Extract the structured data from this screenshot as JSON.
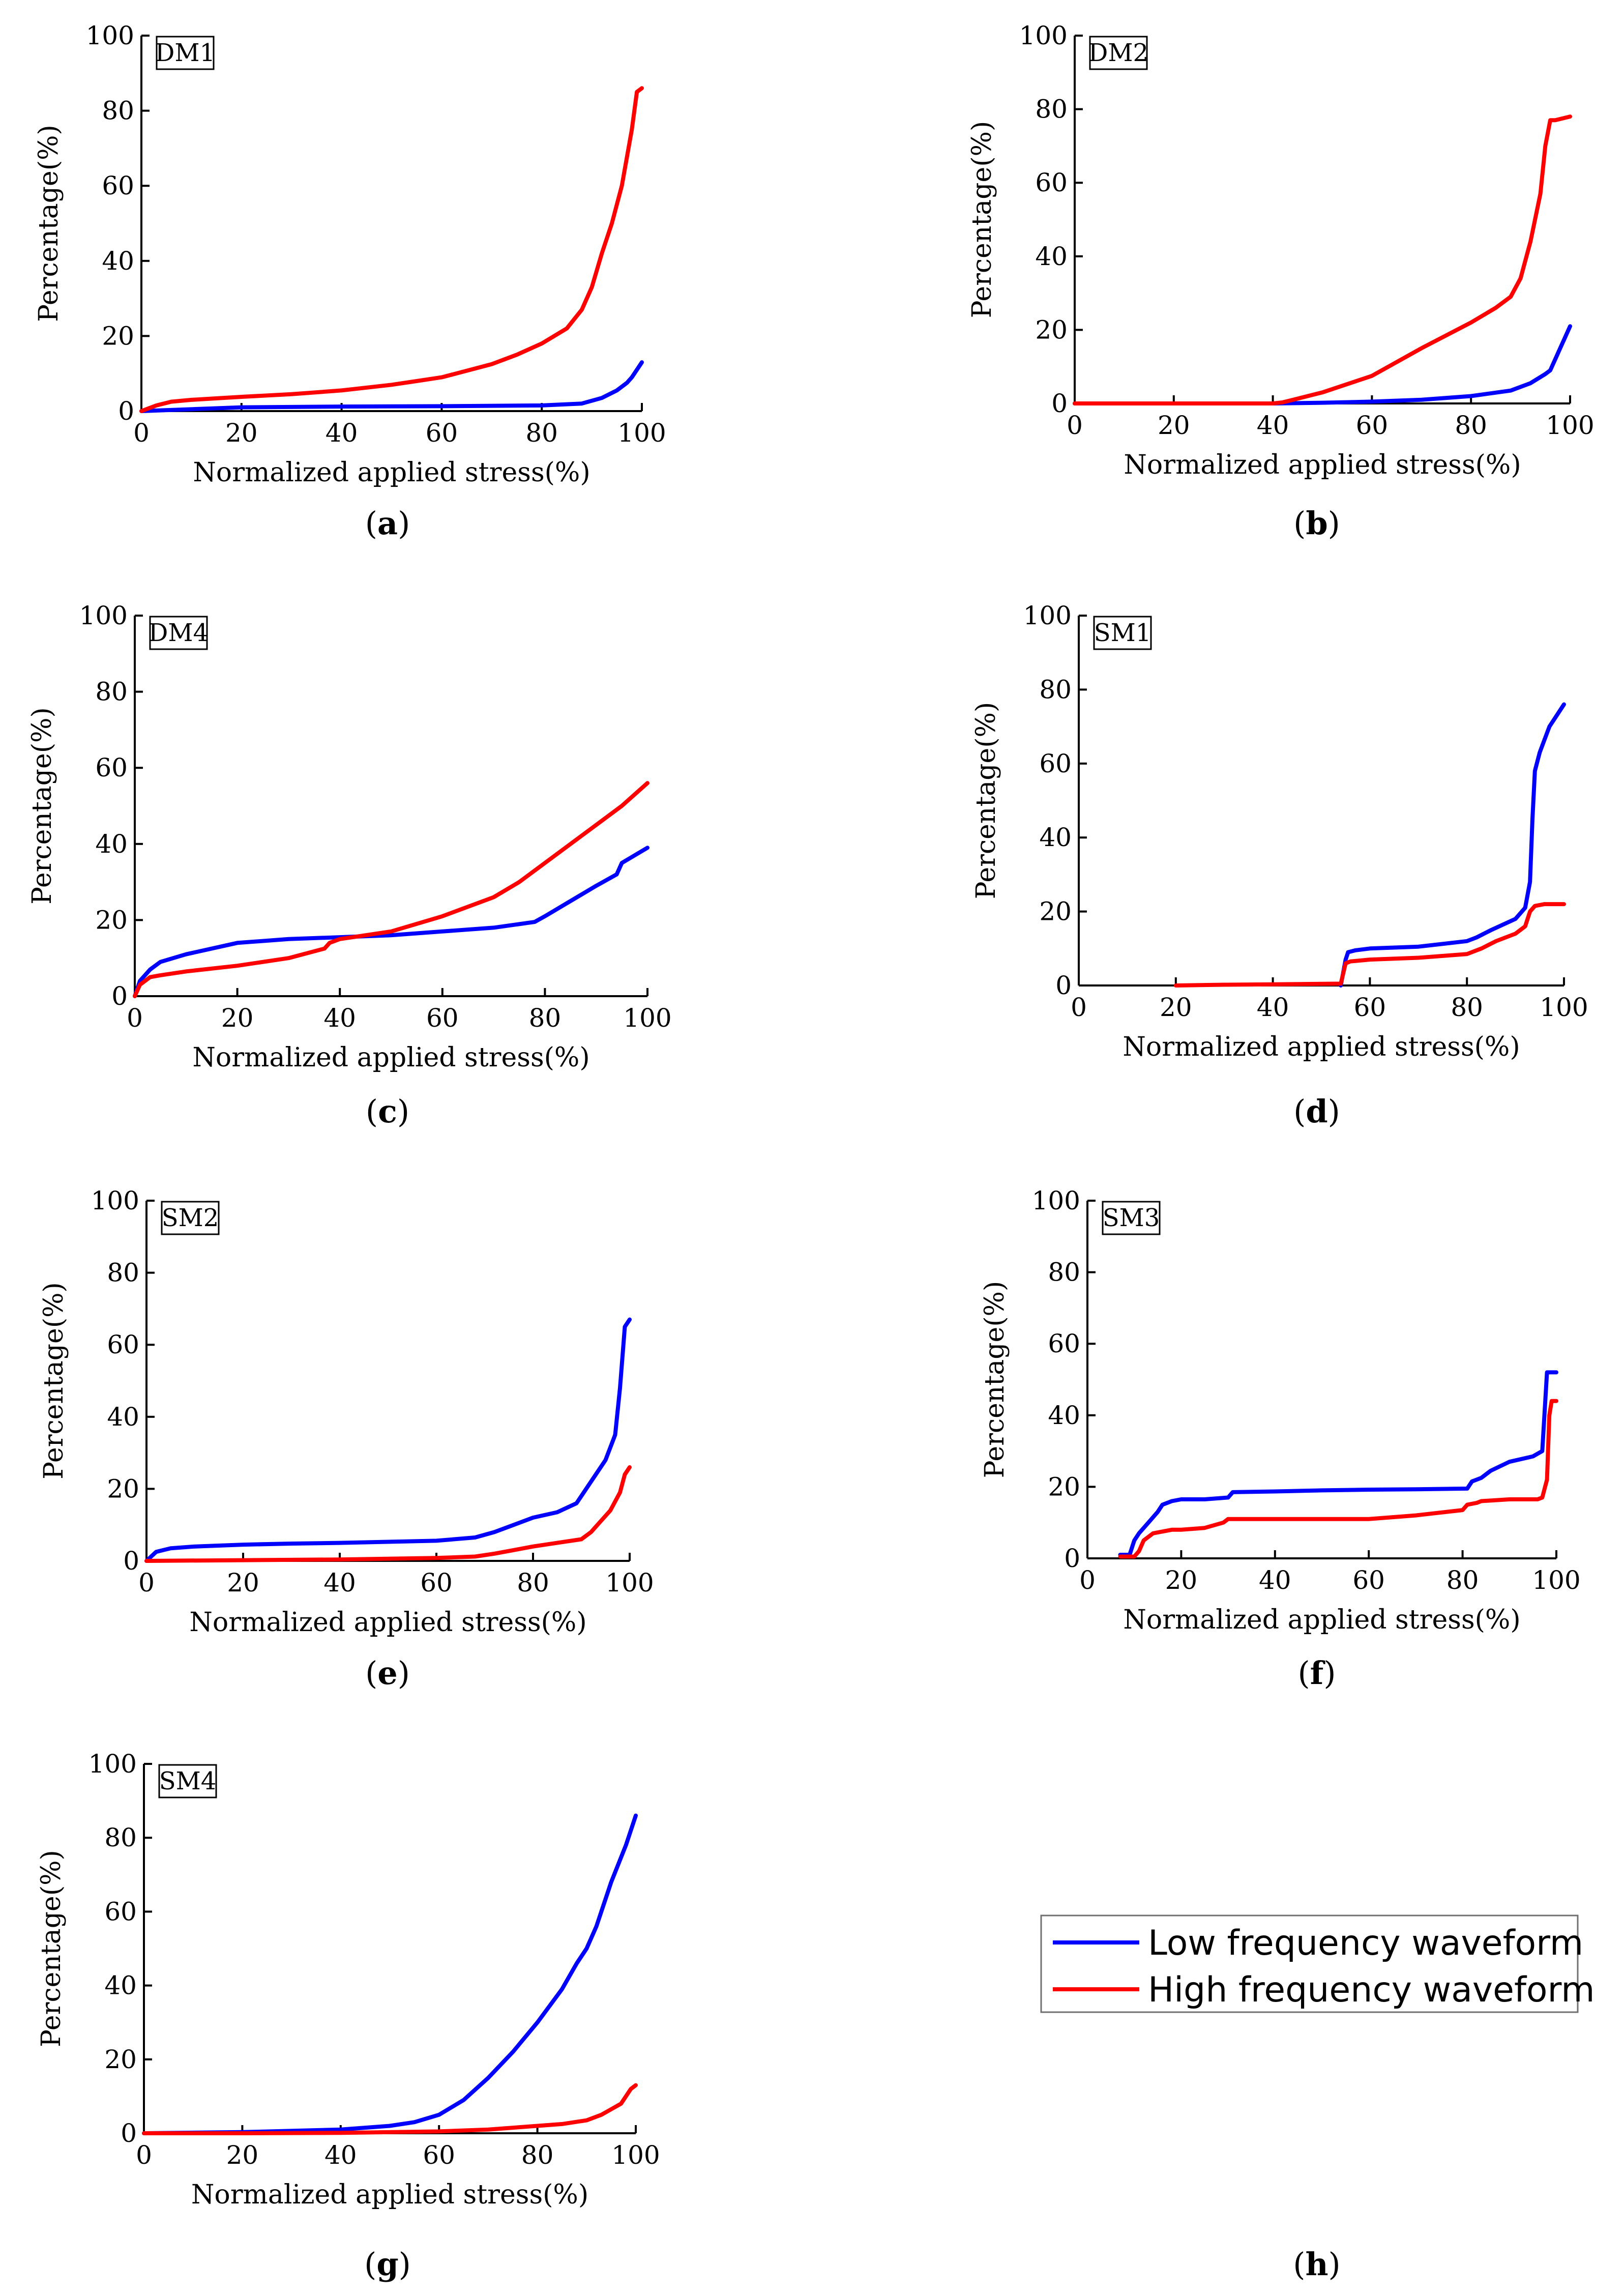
{
  "figure": {
    "legend": {
      "entries": [
        {
          "label": "Low frequency waveform",
          "color": "#0000ff"
        },
        {
          "label": "High frequency waveform",
          "color": "#ff0000"
        }
      ]
    },
    "empty_panel_caption": {
      "open": "(",
      "letter": "h",
      "close": ")"
    }
  },
  "chart_data": [
    {
      "type": "line",
      "panel": "a",
      "sample_label": "DM1",
      "caption": {
        "open": "(",
        "letter": "a",
        "close": ")"
      },
      "xlabel": "Normalized applied stress(%)",
      "ylabel": "Percentage(%)",
      "xlim": [
        0,
        100
      ],
      "ylim": [
        0,
        100
      ],
      "xticks": [
        0,
        20,
        40,
        60,
        80,
        100
      ],
      "yticks": [
        0,
        20,
        40,
        60,
        80,
        100
      ],
      "series": [
        {
          "name": "Low frequency waveform",
          "color": "#0000ff",
          "x": [
            0,
            20,
            40,
            60,
            80,
            88,
            92,
            95,
            97,
            98,
            99,
            100
          ],
          "y": [
            0,
            1,
            1.2,
            1.3,
            1.5,
            2,
            3.5,
            5.5,
            7.5,
            9,
            11,
            13
          ]
        },
        {
          "name": "High frequency waveform",
          "color": "#ff0000",
          "x": [
            0,
            3,
            6,
            10,
            20,
            30,
            40,
            50,
            55,
            60,
            70,
            75,
            80,
            85,
            88,
            90,
            92,
            94,
            96,
            98,
            99,
            100
          ],
          "y": [
            0,
            1.5,
            2.5,
            3,
            3.8,
            4.5,
            5.5,
            7,
            8,
            9,
            12.5,
            15,
            18,
            22,
            27,
            33,
            42,
            50,
            60,
            75,
            85,
            86
          ]
        }
      ]
    },
    {
      "type": "line",
      "panel": "b",
      "sample_label": "DM2",
      "caption": {
        "open": "(",
        "letter": "b",
        "close": ")"
      },
      "xlabel": "Normalized applied stress(%)",
      "ylabel": "Percentage(%)",
      "xlim": [
        0,
        100
      ],
      "ylim": [
        0,
        100
      ],
      "xticks": [
        0,
        20,
        40,
        60,
        80,
        100
      ],
      "yticks": [
        0,
        20,
        40,
        60,
        80,
        100
      ],
      "series": [
        {
          "name": "Low frequency waveform",
          "color": "#0000ff",
          "x": [
            0,
            40,
            50,
            60,
            70,
            80,
            88,
            92,
            95,
            96,
            97,
            98,
            99,
            100
          ],
          "y": [
            0,
            0,
            0.2,
            0.5,
            1,
            2,
            3.5,
            5.5,
            8,
            9,
            12,
            15,
            18,
            21
          ]
        },
        {
          "name": "High frequency waveform",
          "color": "#ff0000",
          "x": [
            0,
            40,
            42,
            50,
            60,
            70,
            80,
            85,
            88,
            90,
            92,
            94,
            95,
            96,
            97,
            100
          ],
          "y": [
            0,
            0,
            0.3,
            3,
            7.5,
            15,
            22,
            26,
            29,
            34,
            44,
            57,
            70,
            77,
            77,
            78
          ]
        }
      ]
    },
    {
      "type": "line",
      "panel": "c",
      "sample_label": "DM4",
      "caption": {
        "open": "(",
        "letter": "c",
        "close": ")"
      },
      "xlabel": "Normalized applied stress(%)",
      "ylabel": "Percentage(%)",
      "xlim": [
        0,
        100
      ],
      "ylim": [
        0,
        100
      ],
      "xticks": [
        0,
        20,
        40,
        60,
        80,
        100
      ],
      "yticks": [
        0,
        20,
        40,
        60,
        80,
        100
      ],
      "series": [
        {
          "name": "Low frequency waveform",
          "color": "#0000ff",
          "x": [
            0,
            1,
            3,
            5,
            10,
            20,
            30,
            40,
            50,
            60,
            70,
            78,
            80,
            85,
            90,
            94,
            95,
            100
          ],
          "y": [
            0,
            4,
            7,
            9,
            11,
            14,
            15,
            15.5,
            16,
            17,
            18,
            19.5,
            21,
            25,
            29,
            32,
            35,
            39
          ]
        },
        {
          "name": "High frequency waveform",
          "color": "#ff0000",
          "x": [
            0,
            1,
            3,
            5,
            10,
            20,
            30,
            37,
            38,
            40,
            50,
            60,
            70,
            75,
            80,
            85,
            90,
            95,
            100
          ],
          "y": [
            0,
            3,
            5,
            5.5,
            6.5,
            8,
            10,
            12.5,
            14,
            15,
            17,
            21,
            26,
            30,
            35,
            40,
            45,
            50,
            56
          ]
        }
      ]
    },
    {
      "type": "line",
      "panel": "d",
      "sample_label": "SM1",
      "caption": {
        "open": "(",
        "letter": "d",
        "close": ")"
      },
      "xlabel": "Normalized applied stress(%)",
      "ylabel": "Percentage(%)",
      "xlim": [
        0,
        100
      ],
      "ylim": [
        0,
        100
      ],
      "xticks": [
        0,
        20,
        40,
        60,
        80,
        100
      ],
      "yticks": [
        0,
        20,
        40,
        60,
        80,
        100
      ],
      "series": [
        {
          "name": "Low frequency waveform",
          "color": "#0000ff",
          "x": [
            54,
            55,
            55.5,
            57,
            60,
            70,
            80,
            82,
            85,
            90,
            92,
            93,
            93.5,
            94,
            95,
            97,
            99,
            100
          ],
          "y": [
            0,
            7,
            9,
            9.5,
            10,
            10.5,
            12,
            13,
            15,
            18,
            21,
            28,
            45,
            58,
            63,
            70,
            74,
            76
          ]
        },
        {
          "name": "High frequency waveform",
          "color": "#ff0000",
          "x": [
            20,
            30,
            40,
            54,
            55,
            56,
            60,
            70,
            80,
            83,
            86,
            90,
            92,
            93,
            94,
            96,
            100
          ],
          "y": [
            0,
            0.2,
            0.3,
            0.5,
            6,
            6.5,
            7,
            7.5,
            8.5,
            10,
            12,
            14,
            16,
            20,
            21.5,
            22,
            22
          ]
        }
      ]
    },
    {
      "type": "line",
      "panel": "e",
      "sample_label": "SM2",
      "caption": {
        "open": "(",
        "letter": "e",
        "close": ")"
      },
      "xlabel": "Normalized applied stress(%)",
      "ylabel": "Percentage(%)",
      "xlim": [
        0,
        100
      ],
      "ylim": [
        0,
        100
      ],
      "xticks": [
        0,
        20,
        40,
        60,
        80,
        100
      ],
      "yticks": [
        0,
        20,
        40,
        60,
        80,
        100
      ],
      "series": [
        {
          "name": "Low frequency waveform",
          "color": "#0000ff",
          "x": [
            0,
            2,
            5,
            10,
            20,
            30,
            40,
            50,
            60,
            68,
            72,
            76,
            80,
            85,
            89,
            91,
            93,
            95,
            97,
            98,
            99,
            100
          ],
          "y": [
            0,
            2.5,
            3.5,
            4,
            4.5,
            4.8,
            5,
            5.3,
            5.6,
            6.5,
            8,
            10,
            12,
            13.5,
            16,
            20,
            24,
            28,
            35,
            48,
            65,
            67
          ]
        },
        {
          "name": "High frequency waveform",
          "color": "#ff0000",
          "x": [
            0,
            20,
            40,
            60,
            68,
            72,
            76,
            80,
            85,
            90,
            92,
            94,
            96,
            98,
            99,
            100
          ],
          "y": [
            0,
            0.2,
            0.4,
            0.8,
            1.2,
            2,
            3,
            4,
            5,
            6,
            8,
            11,
            14,
            19,
            24,
            26
          ]
        }
      ]
    },
    {
      "type": "line",
      "panel": "f",
      "sample_label": "SM3",
      "caption": {
        "open": "(",
        "letter": "f",
        "close": ")"
      },
      "xlabel": "Normalized applied stress(%)",
      "ylabel": "Percentage(%)",
      "xlim": [
        0,
        100
      ],
      "ylim": [
        0,
        100
      ],
      "xticks": [
        0,
        20,
        40,
        60,
        80,
        100
      ],
      "yticks": [
        0,
        20,
        40,
        60,
        80,
        100
      ],
      "series": [
        {
          "name": "Low frequency waveform",
          "color": "#0000ff",
          "x": [
            7,
            9,
            10,
            11,
            13,
            15,
            16,
            18,
            20,
            25,
            30,
            31,
            40,
            50,
            60,
            70,
            81,
            82,
            84,
            86,
            90,
            95,
            97,
            98,
            99,
            100
          ],
          "y": [
            1,
            1,
            5,
            7,
            10,
            13,
            15,
            16,
            16.5,
            16.5,
            17,
            18.5,
            18.7,
            19,
            19.2,
            19.3,
            19.5,
            21.5,
            22.5,
            24.5,
            27,
            28.5,
            30,
            52,
            52,
            52
          ]
        },
        {
          "name": "High frequency waveform",
          "color": "#ff0000",
          "x": [
            7,
            10,
            11,
            12,
            14,
            16,
            18,
            20,
            25,
            29,
            30,
            40,
            50,
            60,
            70,
            80,
            81,
            83,
            84,
            90,
            96,
            97,
            98,
            98.5,
            99,
            100
          ],
          "y": [
            0.5,
            0.5,
            2,
            5,
            7,
            7.5,
            8,
            8,
            8.5,
            10,
            11,
            11,
            11,
            11,
            12,
            13.5,
            15,
            15.5,
            16,
            16.5,
            16.5,
            17,
            22,
            40,
            44,
            44
          ]
        }
      ]
    },
    {
      "type": "line",
      "panel": "g",
      "sample_label": "SM4",
      "caption": {
        "open": "(",
        "letter": "g",
        "close": ")"
      },
      "xlabel": "Normalized applied stress(%)",
      "ylabel": "Percentage(%)",
      "xlim": [
        0,
        100
      ],
      "ylim": [
        0,
        100
      ],
      "xticks": [
        0,
        20,
        40,
        60,
        80,
        100
      ],
      "yticks": [
        0,
        20,
        40,
        60,
        80,
        100
      ],
      "series": [
        {
          "name": "Low frequency waveform",
          "color": "#0000ff",
          "x": [
            0,
            20,
            40,
            50,
            55,
            60,
            65,
            70,
            75,
            80,
            85,
            88,
            90,
            92,
            95,
            98,
            100
          ],
          "y": [
            0,
            0.3,
            1,
            2,
            3,
            5,
            9,
            15,
            22,
            30,
            39,
            46,
            50,
            56,
            68,
            78,
            86
          ]
        },
        {
          "name": "High frequency waveform",
          "color": "#ff0000",
          "x": [
            0,
            20,
            40,
            60,
            70,
            80,
            85,
            90,
            93,
            95,
            97,
            98,
            99,
            100
          ],
          "y": [
            0,
            0,
            0.1,
            0.5,
            1,
            2,
            2.5,
            3.5,
            5,
            6.5,
            8,
            10,
            12,
            13
          ]
        }
      ]
    }
  ]
}
